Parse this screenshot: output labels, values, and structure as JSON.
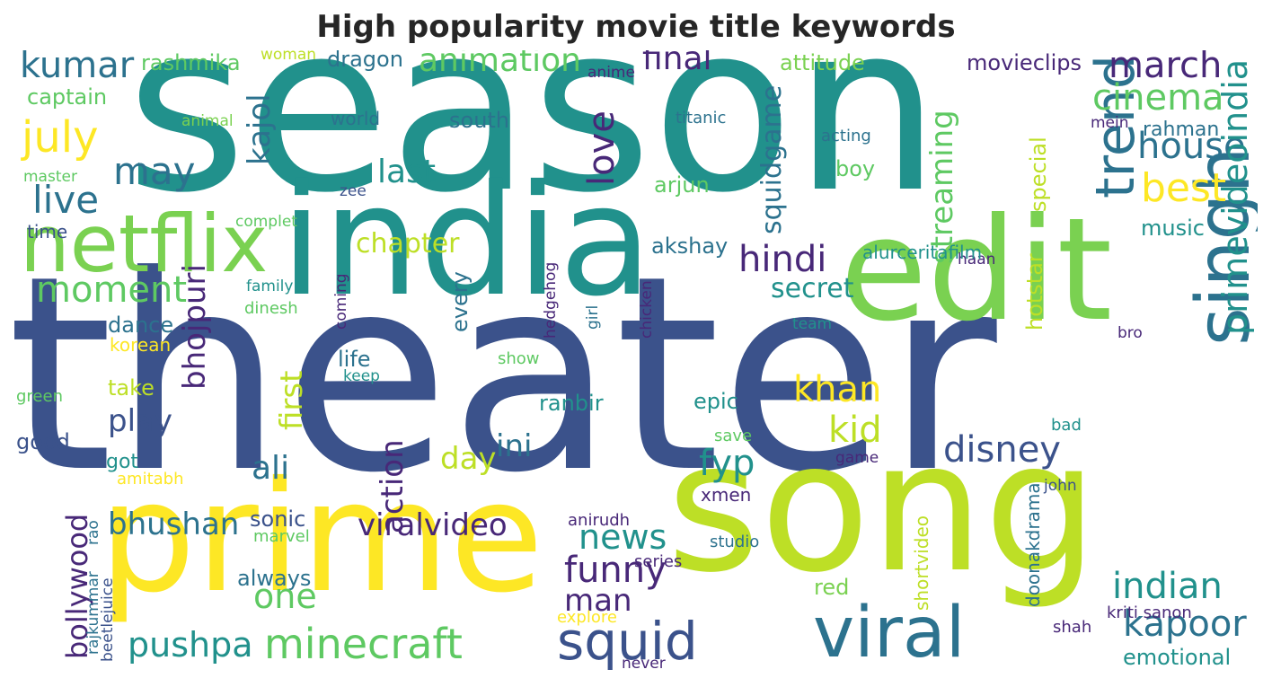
{
  "title": "High popularity movie title keywords",
  "palette": {
    "dark_blue": "#3b528b",
    "dark_purple": "#482878",
    "teal": "#21918c",
    "blue_green": "#2c728e",
    "green": "#5ec962",
    "light_green": "#7ad151",
    "yellow_green": "#bddf26",
    "yellow": "#fde725",
    "deep_purple": "#440154"
  },
  "chart_data": {
    "type": "wordcloud",
    "words": [
      {
        "text": "theater",
        "color": "#3b528b",
        "vertical": false
      },
      {
        "text": "season",
        "color": "#21918c",
        "vertical": false
      },
      {
        "text": "song",
        "color": "#bddf26",
        "vertical": false
      },
      {
        "text": "prime",
        "color": "#fde725",
        "vertical": false
      },
      {
        "text": "india",
        "color": "#21918c",
        "vertical": false
      },
      {
        "text": "edit",
        "color": "#7ad151",
        "vertical": false
      },
      {
        "text": "netflix",
        "color": "#7ad151",
        "vertical": false
      },
      {
        "text": "viral",
        "color": "#2c728e",
        "vertical": false
      },
      {
        "text": "singh",
        "color": "#2c728e",
        "vertical": true
      },
      {
        "text": "trending",
        "color": "#2c728e",
        "vertical": true
      },
      {
        "text": "kumar",
        "color": "#2c728e",
        "vertical": false
      },
      {
        "text": "july",
        "color": "#fde725",
        "vertical": false
      },
      {
        "text": "live",
        "color": "#2c728e",
        "vertical": false
      },
      {
        "text": "moment",
        "color": "#5ec962",
        "vertical": false
      },
      {
        "text": "may",
        "color": "#2c728e",
        "vertical": false
      },
      {
        "text": "rashmika",
        "color": "#5ec962",
        "vertical": false
      },
      {
        "text": "woman",
        "color": "#bddf26",
        "vertical": false
      },
      {
        "text": "dragon",
        "color": "#2c728e",
        "vertical": false
      },
      {
        "text": "animation",
        "color": "#5ec962",
        "vertical": false
      },
      {
        "text": "anime",
        "color": "#482878",
        "vertical": false
      },
      {
        "text": "final",
        "color": "#482878",
        "vertical": false
      },
      {
        "text": "attitude",
        "color": "#7ad151",
        "vertical": false
      },
      {
        "text": "movieclips",
        "color": "#482878",
        "vertical": false
      },
      {
        "text": "march",
        "color": "#482878",
        "vertical": false
      },
      {
        "text": "cinema",
        "color": "#5ec962",
        "vertical": false
      },
      {
        "text": "house",
        "color": "#2c728e",
        "vertical": false
      },
      {
        "text": "best",
        "color": "#fde725",
        "vertical": false
      },
      {
        "text": "captain",
        "color": "#5ec962",
        "vertical": false
      },
      {
        "text": "animal",
        "color": "#7ad151",
        "vertical": false
      },
      {
        "text": "master",
        "color": "#5ec962",
        "vertical": false
      },
      {
        "text": "world",
        "color": "#2c728e",
        "vertical": false
      },
      {
        "text": "south",
        "color": "#2c728e",
        "vertical": false
      },
      {
        "text": "last",
        "color": "#21918c",
        "vertical": false
      },
      {
        "text": "love",
        "color": "#482878",
        "vertical": true
      },
      {
        "text": "squidgame",
        "color": "#2c728e",
        "vertical": true
      },
      {
        "text": "kajol",
        "color": "#2c728e",
        "vertical": true
      },
      {
        "text": "streaming",
        "color": "#5ec962",
        "vertical": true
      },
      {
        "text": "titanic",
        "color": "#2c728e",
        "vertical": false
      },
      {
        "text": "acting",
        "color": "#2c728e",
        "vertical": false
      },
      {
        "text": "mein",
        "color": "#482878",
        "vertical": false
      },
      {
        "text": "rahman",
        "color": "#2c728e",
        "vertical": false
      },
      {
        "text": "boy",
        "color": "#5ec962",
        "vertical": false
      },
      {
        "text": "arjun",
        "color": "#5ec962",
        "vertical": false
      },
      {
        "text": "zee",
        "color": "#3b528b",
        "vertical": false
      },
      {
        "text": "complet",
        "color": "#5ec962",
        "vertical": false
      },
      {
        "text": "time",
        "color": "#3b528b",
        "vertical": false
      },
      {
        "text": "chapter",
        "color": "#bddf26",
        "vertical": false
      },
      {
        "text": "hindi",
        "color": "#482878",
        "vertical": false
      },
      {
        "text": "special",
        "color": "#bddf26",
        "vertical": true
      },
      {
        "text": "music",
        "color": "#21918c",
        "vertical": false
      },
      {
        "text": "haan",
        "color": "#482878",
        "vertical": false
      },
      {
        "text": "alurceritafilm",
        "color": "#21918c",
        "vertical": false
      },
      {
        "text": "akshay",
        "color": "#2c728e",
        "vertical": false
      },
      {
        "text": "secret",
        "color": "#21918c",
        "vertical": false
      },
      {
        "text": "primevideoindia",
        "color": "#21918c",
        "vertical": true
      },
      {
        "text": "hotstar",
        "color": "#bddf26",
        "vertical": true
      },
      {
        "text": "family",
        "color": "#21918c",
        "vertical": false
      },
      {
        "text": "dinesh",
        "color": "#5ec962",
        "vertical": false
      },
      {
        "text": "coming",
        "color": "#482878",
        "vertical": true
      },
      {
        "text": "every",
        "color": "#2c728e",
        "vertical": true
      },
      {
        "text": "hedgehog",
        "color": "#482878",
        "vertical": true
      },
      {
        "text": "girl",
        "color": "#2c728e",
        "vertical": true
      },
      {
        "text": "chicken",
        "color": "#482878",
        "vertical": true
      },
      {
        "text": "team",
        "color": "#21918c",
        "vertical": false
      },
      {
        "text": "bro",
        "color": "#482878",
        "vertical": false
      },
      {
        "text": "dance",
        "color": "#2c728e",
        "vertical": false
      },
      {
        "text": "korean",
        "color": "#fde725",
        "vertical": false
      },
      {
        "text": "life",
        "color": "#2c728e",
        "vertical": false
      },
      {
        "text": "show",
        "color": "#5ec962",
        "vertical": false
      },
      {
        "text": "keep",
        "color": "#21918c",
        "vertical": false
      },
      {
        "text": "bhojpuri",
        "color": "#482878",
        "vertical": true
      },
      {
        "text": "take",
        "color": "#bddf26",
        "vertical": false
      },
      {
        "text": "green",
        "color": "#5ec962",
        "vertical": false
      },
      {
        "text": "play",
        "color": "#3b528b",
        "vertical": false
      },
      {
        "text": "first",
        "color": "#bddf26",
        "vertical": true
      },
      {
        "text": "ranbir",
        "color": "#21918c",
        "vertical": false
      },
      {
        "text": "epic",
        "color": "#21918c",
        "vertical": false
      },
      {
        "text": "khan",
        "color": "#fde725",
        "vertical": false
      },
      {
        "text": "kid",
        "color": "#bddf26",
        "vertical": false
      },
      {
        "text": "disney",
        "color": "#3b528b",
        "vertical": false
      },
      {
        "text": "fyp",
        "color": "#21918c",
        "vertical": false
      },
      {
        "text": "good",
        "color": "#3b528b",
        "vertical": false
      },
      {
        "text": "got",
        "color": "#21918c",
        "vertical": false
      },
      {
        "text": "amitabh",
        "color": "#fde725",
        "vertical": false
      },
      {
        "text": "ali",
        "color": "#2c728e",
        "vertical": false
      },
      {
        "text": "ini",
        "color": "#2c728e",
        "vertical": false
      },
      {
        "text": "day",
        "color": "#bddf26",
        "vertical": false
      },
      {
        "text": "action",
        "color": "#482878",
        "vertical": true
      },
      {
        "text": "save",
        "color": "#5ec962",
        "vertical": false
      },
      {
        "text": "game",
        "color": "#482878",
        "vertical": false
      },
      {
        "text": "bad",
        "color": "#21918c",
        "vertical": false
      },
      {
        "text": "shortvideo",
        "color": "#bddf26",
        "vertical": true
      },
      {
        "text": "john",
        "color": "#3b528b",
        "vertical": false
      },
      {
        "text": "bollywood",
        "color": "#482878",
        "vertical": true
      },
      {
        "text": "rao",
        "color": "#2c728e",
        "vertical": true
      },
      {
        "text": "rajkummar",
        "color": "#2c728e",
        "vertical": true
      },
      {
        "text": "beetlejuice",
        "color": "#3b528b",
        "vertical": true
      },
      {
        "text": "bhushan",
        "color": "#2c728e",
        "vertical": false
      },
      {
        "text": "sonic",
        "color": "#3b528b",
        "vertical": false
      },
      {
        "text": "marvel",
        "color": "#5ec962",
        "vertical": false
      },
      {
        "text": "viralvideo",
        "color": "#482878",
        "vertical": false
      },
      {
        "text": "xmen",
        "color": "#482878",
        "vertical": false
      },
      {
        "text": "anirudh",
        "color": "#482878",
        "vertical": false
      },
      {
        "text": "news",
        "color": "#21918c",
        "vertical": false
      },
      {
        "text": "studio",
        "color": "#2c728e",
        "vertical": false
      },
      {
        "text": "series",
        "color": "#482878",
        "vertical": false
      },
      {
        "text": "always",
        "color": "#2c728e",
        "vertical": false
      },
      {
        "text": "one",
        "color": "#5ec962",
        "vertical": false
      },
      {
        "text": "funny",
        "color": "#482878",
        "vertical": false
      },
      {
        "text": "man",
        "color": "#482878",
        "vertical": false
      },
      {
        "text": "red",
        "color": "#7ad151",
        "vertical": false
      },
      {
        "text": "explore",
        "color": "#fde725",
        "vertical": false
      },
      {
        "text": "doonakdrama",
        "color": "#2c728e",
        "vertical": true
      },
      {
        "text": "indian",
        "color": "#21918c",
        "vertical": false
      },
      {
        "text": "kapoor",
        "color": "#2c728e",
        "vertical": false
      },
      {
        "text": "kriti sanon",
        "color": "#482878",
        "vertical": false
      },
      {
        "text": "shah",
        "color": "#482878",
        "vertical": false
      },
      {
        "text": "emotional",
        "color": "#21918c",
        "vertical": false
      },
      {
        "text": "pushpa",
        "color": "#21918c",
        "vertical": false
      },
      {
        "text": "minecraft",
        "color": "#5ec962",
        "vertical": false
      },
      {
        "text": "squid",
        "color": "#3b528b",
        "vertical": false
      },
      {
        "text": "never",
        "color": "#482878",
        "vertical": false
      }
    ]
  }
}
